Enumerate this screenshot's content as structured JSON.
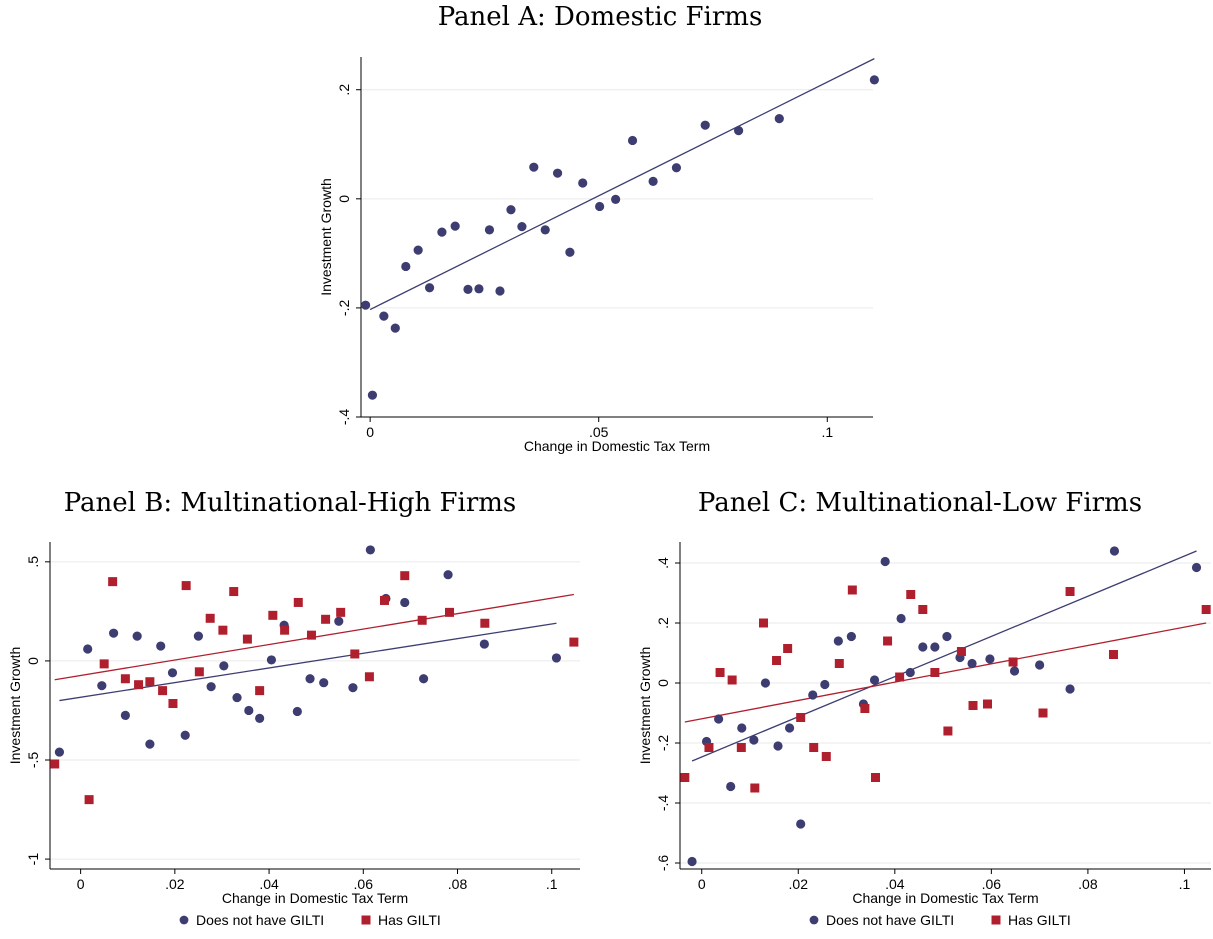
{
  "colors": {
    "navy": "#3d3d72",
    "maroon": "#b01f2e",
    "grid": "#eaeaea",
    "axis": "#000000"
  },
  "legend": {
    "item1": "Does not have GILTI",
    "item2": "Has GILTI"
  },
  "chart_data": [
    {
      "type": "scatter",
      "title": "Panel A: Domestic Firms",
      "xlabel": "Change in Domestic Tax Term",
      "ylabel": "Investment Growth",
      "xlim": [
        -0.002,
        0.11
      ],
      "ylim": [
        -0.4,
        0.26
      ],
      "xticks": [
        0,
        0.05,
        0.1
      ],
      "xtick_labels": [
        "0",
        ".05",
        ".1"
      ],
      "yticks": [
        -0.4,
        -0.2,
        0,
        0.2
      ],
      "ytick_labels": [
        "-.4",
        "-.2",
        "0",
        ".2"
      ],
      "grid": true,
      "series": [
        {
          "color": "#3d3d72",
          "marker": "circle",
          "points": [
            [
              -0.001,
              -0.195
            ],
            [
              0.0005,
              -0.36
            ],
            [
              0.003,
              -0.215
            ],
            [
              0.0055,
              -0.237
            ],
            [
              0.0078,
              -0.124
            ],
            [
              0.0105,
              -0.094
            ],
            [
              0.013,
              -0.163
            ],
            [
              0.0157,
              -0.061
            ],
            [
              0.0186,
              -0.05
            ],
            [
              0.0214,
              -0.166
            ],
            [
              0.0238,
              -0.165
            ],
            [
              0.0261,
              -0.057
            ],
            [
              0.0284,
              -0.169
            ],
            [
              0.0308,
              -0.02
            ],
            [
              0.0332,
              -0.051
            ],
            [
              0.0358,
              0.058
            ],
            [
              0.0383,
              -0.057
            ],
            [
              0.041,
              0.047
            ],
            [
              0.0437,
              -0.098
            ],
            [
              0.0465,
              0.029
            ],
            [
              0.0502,
              -0.014
            ],
            [
              0.0537,
              -0.001
            ],
            [
              0.0574,
              0.107
            ],
            [
              0.0619,
              0.032
            ],
            [
              0.067,
              0.057
            ],
            [
              0.0733,
              0.135
            ],
            [
              0.0806,
              0.125
            ],
            [
              0.0895,
              0.147
            ],
            [
              0.1103,
              0.218
            ]
          ],
          "fit": [
            [
              0,
              -0.203
            ],
            [
              0.1103,
              0.257
            ]
          ]
        }
      ]
    },
    {
      "type": "scatter",
      "title": "Panel B: Multinational-High Firms",
      "xlabel": "Change in Domestic Tax Term",
      "ylabel": "Investment Growth",
      "xlim": [
        -0.0065,
        0.106
      ],
      "ylim": [
        -1.05,
        0.6
      ],
      "xticks": [
        0,
        0.02,
        0.04,
        0.06,
        0.08,
        0.1
      ],
      "xtick_labels": [
        "0",
        ".02",
        ".04",
        ".06",
        ".08",
        ".1"
      ],
      "yticks": [
        -1,
        -0.5,
        0,
        0.5
      ],
      "ytick_labels": [
        "-1",
        "-.5",
        "0",
        ".5"
      ],
      "grid": true,
      "legend": "bottom",
      "series": [
        {
          "name": "Does not have GILTI",
          "color": "#3d3d72",
          "marker": "circle",
          "points": [
            [
              -0.0045,
              -0.46
            ],
            [
              0.0015,
              0.06
            ],
            [
              0.0045,
              -0.125
            ],
            [
              0.007,
              0.14
            ],
            [
              0.0095,
              -0.275
            ],
            [
              0.012,
              0.125
            ],
            [
              0.0147,
              -0.42
            ],
            [
              0.017,
              0.075
            ],
            [
              0.0195,
              -0.06
            ],
            [
              0.0222,
              -0.375
            ],
            [
              0.025,
              0.125
            ],
            [
              0.0277,
              -0.13
            ],
            [
              0.0304,
              -0.025
            ],
            [
              0.0332,
              -0.185
            ],
            [
              0.0357,
              -0.25
            ],
            [
              0.038,
              -0.29
            ],
            [
              0.0405,
              0.005
            ],
            [
              0.0432,
              0.18
            ],
            [
              0.046,
              -0.255
            ],
            [
              0.0487,
              -0.09
            ],
            [
              0.0516,
              -0.11
            ],
            [
              0.0548,
              0.2
            ],
            [
              0.0578,
              -0.135
            ],
            [
              0.0615,
              0.56
            ],
            [
              0.0648,
              0.315
            ],
            [
              0.0688,
              0.295
            ],
            [
              0.0728,
              -0.09
            ],
            [
              0.078,
              0.435
            ],
            [
              0.0857,
              0.085
            ],
            [
              0.101,
              0.015
            ]
          ],
          "fit": [
            [
              -0.0045,
              -0.2
            ],
            [
              0.101,
              0.19
            ]
          ]
        },
        {
          "name": "Has GILTI",
          "color": "#b01f2e",
          "marker": "square",
          "points": [
            [
              -0.0055,
              -0.52
            ],
            [
              0.0018,
              -0.7
            ],
            [
              0.005,
              -0.015
            ],
            [
              0.0068,
              0.4
            ],
            [
              0.0095,
              -0.09
            ],
            [
              0.0123,
              -0.12
            ],
            [
              0.0147,
              -0.105
            ],
            [
              0.0174,
              -0.15
            ],
            [
              0.0196,
              -0.215
            ],
            [
              0.0224,
              0.38
            ],
            [
              0.0252,
              -0.055
            ],
            [
              0.0275,
              0.215
            ],
            [
              0.0302,
              0.155
            ],
            [
              0.0325,
              0.35
            ],
            [
              0.0354,
              0.11
            ],
            [
              0.038,
              -0.15
            ],
            [
              0.0408,
              0.23
            ],
            [
              0.0433,
              0.155
            ],
            [
              0.0462,
              0.295
            ],
            [
              0.049,
              0.13
            ],
            [
              0.052,
              0.21
            ],
            [
              0.0552,
              0.245
            ],
            [
              0.0582,
              0.035
            ],
            [
              0.0613,
              -0.08
            ],
            [
              0.0645,
              0.305
            ],
            [
              0.0688,
              0.43
            ],
            [
              0.0725,
              0.205
            ],
            [
              0.0783,
              0.245
            ],
            [
              0.0858,
              0.19
            ],
            [
              0.1047,
              0.095
            ]
          ],
          "fit": [
            [
              -0.0055,
              -0.095
            ],
            [
              0.1047,
              0.335
            ]
          ]
        }
      ]
    },
    {
      "type": "scatter",
      "title": "Panel C: Multinational-Low Firms",
      "xlabel": "Change in Domestic Tax Term",
      "ylabel": "Investment Growth",
      "xlim": [
        -0.0045,
        0.1055
      ],
      "ylim": [
        -0.62,
        0.47
      ],
      "xticks": [
        0,
        0.02,
        0.04,
        0.06,
        0.08,
        0.1
      ],
      "xtick_labels": [
        "0",
        ".02",
        ".04",
        ".06",
        ".08",
        ".1"
      ],
      "yticks": [
        -0.6,
        -0.4,
        -0.2,
        0,
        0.2,
        0.4
      ],
      "ytick_labels": [
        "-.6",
        "-.4",
        "-.2",
        "0",
        ".2",
        ".4"
      ],
      "grid": true,
      "legend": "bottom",
      "series": [
        {
          "name": "Does not have GILTI",
          "color": "#3d3d72",
          "marker": "circle",
          "points": [
            [
              -0.002,
              -0.595
            ],
            [
              0.001,
              -0.195
            ],
            [
              0.0035,
              -0.12
            ],
            [
              0.006,
              -0.345
            ],
            [
              0.0083,
              -0.15
            ],
            [
              0.0108,
              -0.19
            ],
            [
              0.0132,
              0
            ],
            [
              0.0158,
              -0.21
            ],
            [
              0.0182,
              -0.15
            ],
            [
              0.0205,
              -0.47
            ],
            [
              0.023,
              -0.04
            ],
            [
              0.0255,
              -0.005
            ],
            [
              0.0283,
              0.14
            ],
            [
              0.031,
              0.155
            ],
            [
              0.0335,
              -0.07
            ],
            [
              0.0358,
              0.01
            ],
            [
              0.038,
              0.405
            ],
            [
              0.0413,
              0.215
            ],
            [
              0.0432,
              0.035
            ],
            [
              0.0458,
              0.12
            ],
            [
              0.0483,
              0.12
            ],
            [
              0.0508,
              0.155
            ],
            [
              0.0535,
              0.085
            ],
            [
              0.056,
              0.065
            ],
            [
              0.0597,
              0.08
            ],
            [
              0.0648,
              0.04
            ],
            [
              0.07,
              0.06
            ],
            [
              0.0763,
              -0.02
            ],
            [
              0.0855,
              0.44
            ],
            [
              0.1025,
              0.385
            ]
          ],
          "fit": [
            [
              -0.002,
              -0.26
            ],
            [
              0.1025,
              0.44
            ]
          ]
        },
        {
          "name": "Has GILTI",
          "color": "#b01f2e",
          "marker": "square",
          "points": [
            [
              -0.0035,
              -0.315
            ],
            [
              0.0015,
              -0.215
            ],
            [
              0.0038,
              0.035
            ],
            [
              0.0063,
              0.01
            ],
            [
              0.0082,
              -0.215
            ],
            [
              0.011,
              -0.35
            ],
            [
              0.0128,
              0.2
            ],
            [
              0.0155,
              0.075
            ],
            [
              0.0178,
              0.115
            ],
            [
              0.0205,
              -0.115
            ],
            [
              0.0232,
              -0.215
            ],
            [
              0.0258,
              -0.245
            ],
            [
              0.0285,
              0.065
            ],
            [
              0.0312,
              0.31
            ],
            [
              0.0338,
              -0.085
            ],
            [
              0.036,
              -0.315
            ],
            [
              0.0385,
              0.14
            ],
            [
              0.041,
              0.02
            ],
            [
              0.0433,
              0.295
            ],
            [
              0.0458,
              0.245
            ],
            [
              0.0483,
              0.035
            ],
            [
              0.051,
              -0.16
            ],
            [
              0.0538,
              0.105
            ],
            [
              0.0562,
              -0.075
            ],
            [
              0.0592,
              -0.07
            ],
            [
              0.0645,
              0.07
            ],
            [
              0.0707,
              -0.1
            ],
            [
              0.0763,
              0.305
            ],
            [
              0.0853,
              0.095
            ],
            [
              0.1045,
              0.245
            ]
          ],
          "fit": [
            [
              -0.0035,
              -0.13
            ],
            [
              0.1045,
              0.2
            ]
          ]
        }
      ]
    }
  ]
}
